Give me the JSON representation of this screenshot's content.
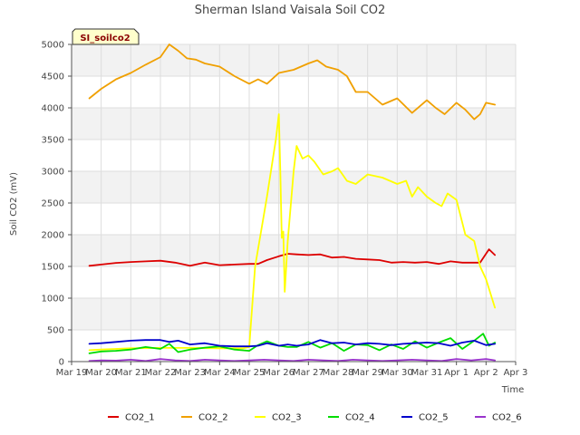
{
  "chart_data": {
    "type": "line",
    "title": "Sherman Island Vaisala Soil CO2",
    "site_label": "SI_soilco2",
    "xlabel": "Time",
    "ylabel": "Soil CO2 (mV)",
    "ylim": [
      0,
      5000
    ],
    "yticks": [
      0,
      500,
      1000,
      1500,
      2000,
      2500,
      3000,
      3500,
      4000,
      4500,
      5000
    ],
    "xlim": [
      0,
      15
    ],
    "xtick_values": [
      0,
      1,
      2,
      3,
      4,
      5,
      6,
      7,
      8,
      9,
      10,
      11,
      12,
      13,
      14,
      15
    ],
    "xtick_labels": [
      "Mar 19",
      "Mar 20",
      "Mar 21",
      "Mar 22",
      "Mar 23",
      "Mar 24",
      "Mar 25",
      "Mar 26",
      "Mar 27",
      "Mar 28",
      "Mar 29",
      "Mar 30",
      "Mar 31",
      "Apr 1",
      "Apr 2",
      "Apr 3"
    ],
    "grid": true,
    "legend_position": "bottom",
    "series": [
      {
        "name": "CO2_1",
        "color": "#dd0000",
        "x": [
          0.6,
          1.0,
          1.5,
          2.0,
          2.5,
          3.0,
          3.5,
          4.0,
          4.5,
          5.0,
          5.5,
          6.0,
          6.3,
          6.6,
          7.0,
          7.3,
          7.6,
          8.0,
          8.4,
          8.8,
          9.2,
          9.6,
          10.0,
          10.4,
          10.8,
          11.2,
          11.6,
          12.0,
          12.4,
          12.8,
          13.2,
          13.6,
          13.8,
          14.0,
          14.1,
          14.3
        ],
        "y": [
          1510,
          1530,
          1555,
          1570,
          1580,
          1590,
          1560,
          1510,
          1560,
          1520,
          1530,
          1540,
          1540,
          1600,
          1660,
          1700,
          1690,
          1680,
          1690,
          1640,
          1650,
          1620,
          1610,
          1600,
          1560,
          1570,
          1560,
          1570,
          1540,
          1580,
          1560,
          1560,
          1560,
          1700,
          1770,
          1680
        ]
      },
      {
        "name": "CO2_2",
        "color": "#f0a000",
        "x": [
          0.6,
          1.0,
          1.5,
          2.0,
          2.5,
          3.0,
          3.3,
          3.6,
          3.9,
          4.2,
          4.5,
          5.0,
          5.5,
          6.0,
          6.3,
          6.6,
          7.0,
          7.5,
          8.0,
          8.3,
          8.6,
          9.0,
          9.3,
          9.6,
          10.0,
          10.5,
          11.0,
          11.5,
          12.0,
          12.3,
          12.6,
          13.0,
          13.3,
          13.6,
          13.8,
          14.0,
          14.3
        ],
        "y": [
          4150,
          4300,
          4450,
          4550,
          4680,
          4800,
          5000,
          4900,
          4780,
          4760,
          4700,
          4650,
          4500,
          4380,
          4450,
          4380,
          4550,
          4600,
          4700,
          4750,
          4650,
          4600,
          4500,
          4250,
          4250,
          4050,
          4150,
          3920,
          4120,
          4000,
          3900,
          4080,
          3970,
          3820,
          3900,
          4080,
          4050
        ]
      },
      {
        "name": "CO2_3",
        "color": "#ffff00",
        "x": [
          0.6,
          1.0,
          2.0,
          3.0,
          4.0,
          5.0,
          5.4,
          5.8,
          6.0,
          6.2,
          6.6,
          6.9,
          7.0,
          7.05,
          7.1,
          7.15,
          7.2,
          7.3,
          7.5,
          7.6,
          7.7,
          7.8,
          8.0,
          8.2,
          8.5,
          8.8,
          9.0,
          9.3,
          9.6,
          10.0,
          10.5,
          11.0,
          11.3,
          11.5,
          11.7,
          12.0,
          12.3,
          12.5,
          12.7,
          13.0,
          13.3,
          13.6,
          13.8,
          14.0,
          14.3
        ],
        "y": [
          180,
          190,
          210,
          215,
          215,
          210,
          210,
          210,
          230,
          1500,
          2600,
          3500,
          3900,
          3000,
          1950,
          2050,
          1100,
          1900,
          3000,
          3400,
          3300,
          3200,
          3250,
          3150,
          2950,
          3000,
          3050,
          2850,
          2800,
          2950,
          2900,
          2800,
          2850,
          2600,
          2750,
          2600,
          2500,
          2450,
          2650,
          2550,
          2000,
          1900,
          1500,
          1300,
          850
        ]
      },
      {
        "name": "CO2_4",
        "color": "#00dd00",
        "x": [
          0.6,
          1.0,
          1.5,
          2.0,
          2.5,
          3.0,
          3.3,
          3.6,
          4.0,
          4.5,
          5.0,
          5.5,
          6.0,
          6.3,
          6.6,
          7.0,
          7.3,
          7.6,
          8.0,
          8.4,
          8.8,
          9.2,
          9.6,
          10.0,
          10.4,
          10.8,
          11.2,
          11.6,
          12.0,
          12.4,
          12.8,
          13.2,
          13.6,
          13.9,
          14.1,
          14.3
        ],
        "y": [
          130,
          160,
          170,
          190,
          230,
          200,
          280,
          150,
          190,
          220,
          240,
          190,
          170,
          260,
          320,
          250,
          230,
          230,
          310,
          220,
          290,
          170,
          270,
          260,
          180,
          270,
          200,
          320,
          220,
          300,
          370,
          200,
          330,
          440,
          250,
          300
        ]
      },
      {
        "name": "CO2_5",
        "color": "#0000cc",
        "x": [
          0.6,
          1.0,
          1.5,
          2.0,
          2.5,
          3.0,
          3.3,
          3.6,
          4.0,
          4.5,
          5.0,
          5.5,
          6.0,
          6.3,
          6.6,
          7.0,
          7.3,
          7.6,
          8.0,
          8.4,
          8.8,
          9.2,
          9.6,
          10.0,
          10.4,
          10.8,
          11.2,
          11.6,
          12.0,
          12.4,
          12.8,
          13.2,
          13.6,
          14.0,
          14.3
        ],
        "y": [
          280,
          290,
          310,
          330,
          340,
          340,
          310,
          330,
          270,
          290,
          250,
          240,
          240,
          250,
          290,
          250,
          270,
          250,
          270,
          340,
          290,
          300,
          270,
          290,
          280,
          260,
          280,
          290,
          300,
          290,
          250,
          300,
          330,
          260,
          280
        ]
      },
      {
        "name": "CO2_6",
        "color": "#9933cc",
        "x": [
          0.6,
          1.0,
          1.5,
          2.0,
          2.5,
          3.0,
          3.5,
          4.0,
          4.5,
          5.0,
          5.5,
          6.0,
          6.5,
          7.0,
          7.5,
          8.0,
          8.5,
          9.0,
          9.5,
          10.0,
          10.5,
          11.0,
          11.5,
          12.0,
          12.5,
          13.0,
          13.5,
          14.0,
          14.3
        ],
        "y": [
          10,
          20,
          15,
          30,
          10,
          40,
          20,
          10,
          30,
          20,
          10,
          20,
          30,
          20,
          10,
          30,
          20,
          10,
          30,
          20,
          10,
          20,
          30,
          20,
          10,
          40,
          20,
          40,
          20
        ]
      }
    ]
  }
}
